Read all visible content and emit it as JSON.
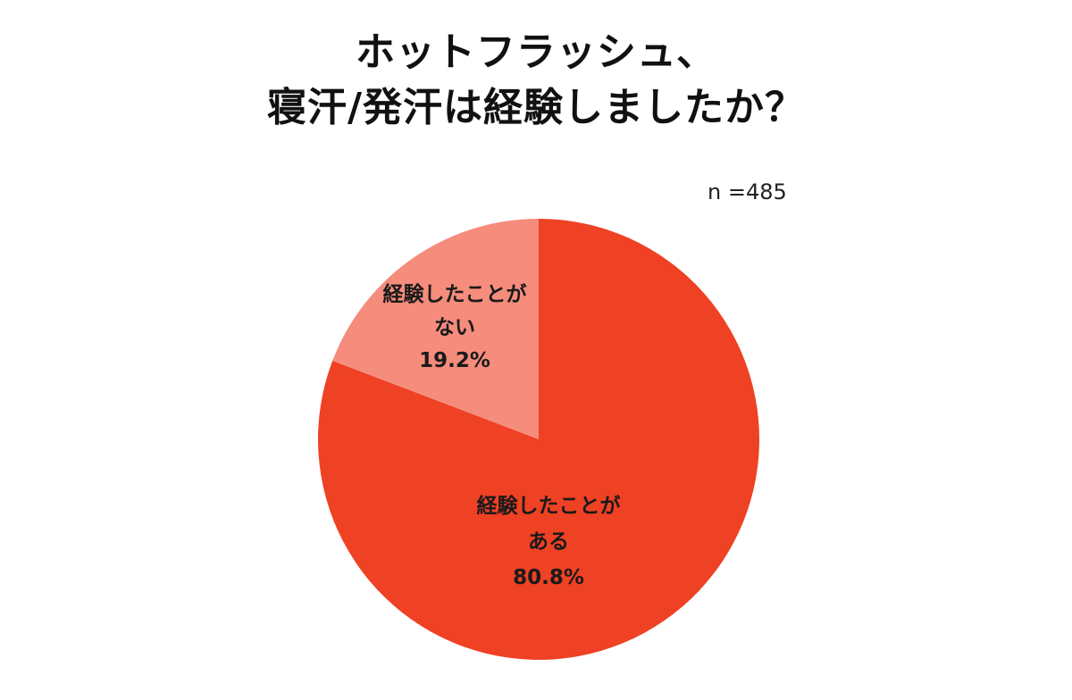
{
  "title": {
    "line1": "ホットフラッシュ、",
    "line2": "寝汗/発汗は経験しましたか？"
  },
  "sample_size": "n =485",
  "colors": {
    "yes": "#ef4123",
    "no": "#f58c7c"
  },
  "chart_data": {
    "type": "pie",
    "title": "ホットフラッシュ、寝汗/発汗は経験しましたか？",
    "note": "n =485",
    "slices": [
      {
        "key": "yes",
        "label_lines": [
          "経験したことが",
          "ある"
        ],
        "value": 80.8,
        "value_label": "80.8%",
        "color": "#ef4123"
      },
      {
        "key": "no",
        "label_lines": [
          "経験したことが",
          "ない"
        ],
        "value": 19.2,
        "value_label": "19.2%",
        "color": "#f58c7c"
      }
    ],
    "start": "12 o'clock",
    "direction": "clockwise",
    "legend": "none"
  }
}
